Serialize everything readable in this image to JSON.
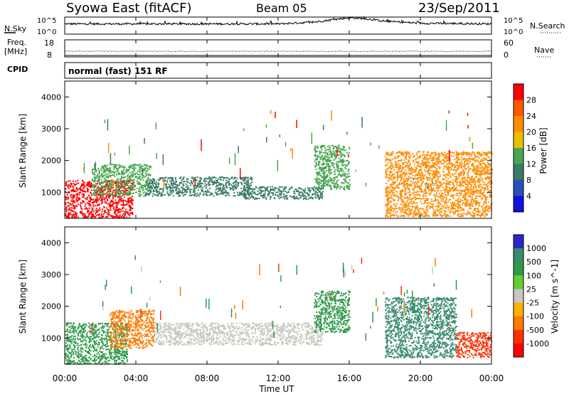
{
  "header": {
    "station": "Syowa East (fitACF)",
    "beam": "Beam 05",
    "date": "23/Sep/2011"
  },
  "noise_panel": {
    "left_label": "N.Sky",
    "right_label": "N.Search",
    "left_ticks": [
      "10^5",
      "10^0"
    ],
    "right_ticks": [
      "10^5",
      "10^0"
    ]
  },
  "freq_panel": {
    "left_label_line1": "Freq.",
    "left_label_line2": "[MHz]",
    "left_ticks": [
      "18",
      "8"
    ],
    "right_label": "Nave",
    "right_ticks": [
      "60",
      "0"
    ]
  },
  "cpid_panel": {
    "label": "CPID",
    "mode": "normal (fast) 151 RF"
  },
  "power_panel": {
    "ylabel": "Slant Range [km]",
    "yticks": [
      "1000",
      "2000",
      "3000",
      "4000"
    ],
    "colorbar_label": "Power [dB]",
    "colorbar_ticks": [
      "4",
      "8",
      "12",
      "16",
      "20",
      "24",
      "28"
    ],
    "colors": [
      "#1010e0",
      "#2850b8",
      "#3a7a68",
      "#4aa650",
      "#e6c000",
      "#ff8c00",
      "#ff5a00",
      "#ff0000"
    ]
  },
  "velocity_panel": {
    "ylabel": "Slant Range [km]",
    "yticks": [
      "1000",
      "2000",
      "3000",
      "4000"
    ],
    "colorbar_label": "Velocity [m s^-1]",
    "colorbar_ticks": [
      "1000",
      "500",
      "100",
      "25",
      "-25",
      "-100",
      "-500",
      "-1000"
    ],
    "colors": [
      "#2828c8",
      "#3a8a70",
      "#2f9a4a",
      "#66cc33",
      "#c8c8c0",
      "#ffb000",
      "#ff7a00",
      "#ff3000",
      "#ff0000"
    ]
  },
  "xaxis": {
    "label": "Time UT",
    "ticks": [
      "00:00",
      "04:00",
      "08:00",
      "12:00",
      "16:00",
      "20:00",
      "00:00"
    ]
  },
  "chart_data": [
    {
      "type": "line",
      "title": "Syowa East (fitACF)",
      "series": [
        {
          "name": "N.Sky",
          "x": [
            0,
            4,
            8,
            12,
            14,
            15,
            16,
            17,
            18,
            20,
            24
          ],
          "values": [
            3,
            3,
            3,
            3,
            3.5,
            4.2,
            4.8,
            4.5,
            3.8,
            3.2,
            3
          ]
        }
      ],
      "xlabel": "Time UT",
      "xlim": [
        0,
        24
      ],
      "ylim": [
        0,
        5
      ]
    },
    {
      "type": "scatter",
      "series": [
        {
          "name": "Freq.",
          "x": [
            0,
            6,
            12,
            18,
            24
          ],
          "values": [
            11.5,
            11.5,
            11.5,
            11.5,
            11.5
          ]
        }
      ],
      "ylabel": "Freq. [MHz]",
      "ylim": [
        8,
        18
      ],
      "xlim": [
        0,
        24
      ]
    },
    {
      "type": "heatmap",
      "ylabel": "Slant Range [km]",
      "xlabel": "Time UT",
      "xlim": [
        0,
        24
      ],
      "ylim": [
        180,
        4500
      ],
      "colorbar_label": "Power [dB]",
      "regions": [
        {
          "x": [
            0,
            3.8
          ],
          "y": [
            200,
            1400
          ],
          "level": 28
        },
        {
          "x": [
            1.5,
            4.8
          ],
          "y": [
            900,
            1900
          ],
          "level": 14
        },
        {
          "x": [
            4.5,
            10.5
          ],
          "y": [
            900,
            1500
          ],
          "level": 8
        },
        {
          "x": [
            10,
            14.5
          ],
          "y": [
            800,
            1200
          ],
          "level": 8
        },
        {
          "x": [
            14,
            16
          ],
          "y": [
            1100,
            2500
          ],
          "level": 14
        },
        {
          "x": [
            18,
            24
          ],
          "y": [
            250,
            2300
          ],
          "level": 20
        }
      ]
    },
    {
      "type": "heatmap",
      "ylabel": "Slant Range [km]",
      "xlabel": "Time UT",
      "xlim": [
        0,
        24
      ],
      "ylim": [
        180,
        4500
      ],
      "colorbar_label": "Velocity [m s^-1]",
      "regions": [
        {
          "x": [
            0,
            3.5
          ],
          "y": [
            200,
            1500
          ],
          "level": 200
        },
        {
          "x": [
            2.5,
            5
          ],
          "y": [
            700,
            1900
          ],
          "level": -300
        },
        {
          "x": [
            5,
            14.5
          ],
          "y": [
            800,
            1500
          ],
          "level": 0
        },
        {
          "x": [
            14,
            16
          ],
          "y": [
            1200,
            2500
          ],
          "level": 100
        },
        {
          "x": [
            18,
            22
          ],
          "y": [
            400,
            2300
          ],
          "level": 300
        },
        {
          "x": [
            22,
            24
          ],
          "y": [
            400,
            1200
          ],
          "level": -400
        }
      ]
    }
  ]
}
